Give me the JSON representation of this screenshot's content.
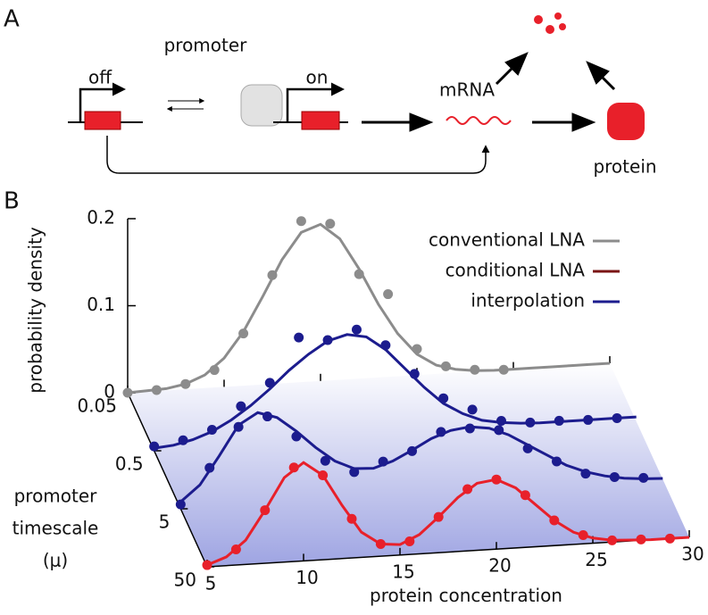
{
  "panel_a": {
    "label": "A",
    "promoter": "promoter",
    "off": "off",
    "on": "on",
    "mrna": "mRNA",
    "protein": "protein"
  },
  "panel_b": {
    "label": "B"
  },
  "chart_data": {
    "type": "waterfall",
    "xlabel": "protein concentration",
    "ylabel": "probability density",
    "zlabel": [
      "promoter",
      "timescale",
      "(μ)"
    ],
    "x": [
      5,
      6.5,
      8,
      9.5,
      11,
      12.5,
      14,
      15.5,
      17,
      18.5,
      20,
      21.5,
      23,
      24.5,
      26,
      27.5,
      29
    ],
    "line_x": [
      5,
      6,
      7,
      8,
      9,
      10,
      11,
      12,
      13,
      14,
      15,
      16,
      17,
      18,
      19,
      20,
      21,
      22,
      23,
      24,
      25,
      26,
      27,
      28,
      29,
      30
    ],
    "xlim": [
      5,
      30
    ],
    "xticks": [
      5,
      10,
      15,
      20,
      25,
      30
    ],
    "ylim": [
      0,
      0.2
    ],
    "yticks": [
      0,
      0.1,
      0.2
    ],
    "zlim": [
      0.05,
      50
    ],
    "zticks": [
      0.05,
      0.5,
      5,
      50
    ],
    "zscale": "log",
    "legend_position": "top-right",
    "legend": [
      {
        "name": "conventional LNA",
        "color": "#8c8c8c"
      },
      {
        "name": "conditional LNA",
        "color": "#7a1414"
      },
      {
        "name": "interpolation",
        "color": "#1c1c8e"
      }
    ],
    "series": [
      {
        "z": 0.05,
        "color": "#8c8c8c",
        "values": [
          0,
          0.001,
          0.006,
          0.02,
          0.06,
          0.125,
          0.185,
          0.18,
          0.12,
          0.095,
          0.03,
          0.008,
          0.002,
          0,
          null,
          null,
          null
        ],
        "line_values": [
          0,
          0.001,
          0.002,
          0.006,
          0.015,
          0.033,
          0.062,
          0.101,
          0.142,
          0.172,
          0.18,
          0.162,
          0.126,
          0.084,
          0.049,
          0.024,
          0.01,
          0.004,
          0.001,
          0,
          0,
          0,
          0,
          0,
          0,
          0
        ]
      },
      {
        "z": 0.5,
        "color": "#1c1c8e",
        "values": [
          0.005,
          0.01,
          0.02,
          0.045,
          0.07,
          0.12,
          0.115,
          0.125,
          0.105,
          0.07,
          0.04,
          0.025,
          0.01,
          0.006,
          0.006,
          0.005,
          0.005
        ],
        "line_values": [
          0.003,
          0.005,
          0.01,
          0.018,
          0.03,
          0.045,
          0.063,
          0.083,
          0.1,
          0.114,
          0.12,
          0.116,
          0.1,
          0.077,
          0.054,
          0.034,
          0.021,
          0.012,
          0.008,
          0.006,
          0.005,
          0.005,
          0.005,
          0.005,
          0.005,
          0.005
        ]
      },
      {
        "z": 5,
        "color": "#1c1c8e",
        "values": [
          0.005,
          0.045,
          0.09,
          0.1,
          0.075,
          0.045,
          0.03,
          0.04,
          0.05,
          0.07,
          0.072,
          0.068,
          0.045,
          0.028,
          0.012,
          0.006,
          0.003
        ],
        "line_values": [
          0.008,
          0.026,
          0.058,
          0.092,
          0.105,
          0.098,
          0.081,
          0.061,
          0.044,
          0.034,
          0.033,
          0.04,
          0.051,
          0.063,
          0.071,
          0.074,
          0.071,
          0.062,
          0.049,
          0.036,
          0.023,
          0.014,
          0.008,
          0.004,
          0.002,
          0.001
        ]
      },
      {
        "z": 50,
        "color": "#e8202a",
        "values": [
          0.002,
          0.018,
          0.061,
          0.108,
          0.097,
          0.045,
          0.014,
          0.015,
          0.041,
          0.071,
          0.08,
          0.06,
          0.029,
          0.01,
          0.002,
          0.001,
          0
        ],
        "line_values": [
          0.002,
          0.01,
          0.028,
          0.061,
          0.097,
          0.113,
          0.097,
          0.061,
          0.029,
          0.014,
          0.012,
          0.022,
          0.041,
          0.062,
          0.077,
          0.08,
          0.069,
          0.049,
          0.029,
          0.014,
          0.006,
          0.002,
          0.001,
          0,
          0,
          0
        ]
      }
    ]
  }
}
